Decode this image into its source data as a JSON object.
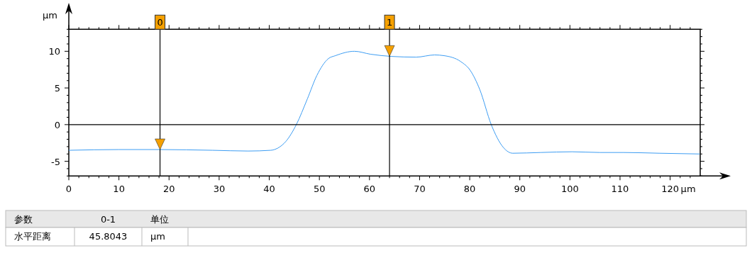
{
  "chart_data": {
    "type": "line",
    "xlabel": "μm",
    "ylabel": "μm",
    "xlim": [
      0,
      126
    ],
    "ylim": [
      -7,
      13
    ],
    "xticks": [
      0,
      {
        "value": 2,
        "label": null
      },
      {
        "value": 4,
        "label": null
      },
      {
        "value": 6,
        "label": null
      },
      {
        "value": 8,
        "label": null
      },
      10,
      {
        "value": 12,
        "label": null
      },
      {
        "value": 14,
        "label": null
      },
      {
        "value": 16,
        "label": null
      },
      {
        "value": 18,
        "label": null
      },
      20,
      {
        "value": 22,
        "label": null
      },
      {
        "value": 24,
        "label": null
      },
      {
        "value": 26,
        "label": null
      },
      {
        "value": 28,
        "label": null
      },
      30,
      {
        "value": 32,
        "label": null
      },
      {
        "value": 34,
        "label": null
      },
      {
        "value": 36,
        "label": null
      },
      {
        "value": 38,
        "label": null
      },
      40,
      {
        "value": 42,
        "label": null
      },
      {
        "value": 44,
        "label": null
      },
      {
        "value": 46,
        "label": null
      },
      {
        "value": 48,
        "label": null
      },
      50,
      {
        "value": 52,
        "label": null
      },
      {
        "value": 54,
        "label": null
      },
      {
        "value": 56,
        "label": null
      },
      {
        "value": 58,
        "label": null
      },
      60,
      {
        "value": 62,
        "label": null
      },
      {
        "value": 64,
        "label": null
      },
      {
        "value": 66,
        "label": null
      },
      {
        "value": 68,
        "label": null
      },
      70,
      {
        "value": 72,
        "label": null
      },
      {
        "value": 74,
        "label": null
      },
      {
        "value": 76,
        "label": null
      },
      {
        "value": 78,
        "label": null
      },
      80,
      {
        "value": 82,
        "label": null
      },
      {
        "value": 84,
        "label": null
      },
      {
        "value": 86,
        "label": null
      },
      {
        "value": 88,
        "label": null
      },
      90,
      {
        "value": 92,
        "label": null
      },
      {
        "value": 94,
        "label": null
      },
      {
        "value": 96,
        "label": null
      },
      {
        "value": 98,
        "label": null
      },
      100,
      {
        "value": 102,
        "label": null
      },
      {
        "value": 104,
        "label": null
      },
      {
        "value": 106,
        "label": null
      },
      {
        "value": 108,
        "label": null
      },
      110,
      {
        "value": 112,
        "label": null
      },
      {
        "value": 114,
        "label": null
      },
      {
        "value": 116,
        "label": null
      },
      {
        "value": 118,
        "label": null
      },
      120,
      {
        "value": 122,
        "label": null
      },
      {
        "value": 124,
        "label": null
      }
    ],
    "yticks": [
      {
        "value": -7,
        "label": null
      },
      {
        "value": -6,
        "label": null
      },
      -5,
      {
        "value": -4,
        "label": null
      },
      {
        "value": -3,
        "label": null
      },
      {
        "value": -2,
        "label": null
      },
      {
        "value": -1,
        "label": null
      },
      0,
      {
        "value": 1,
        "label": null
      },
      {
        "value": 2,
        "label": null
      },
      {
        "value": 3,
        "label": null
      },
      {
        "value": 4,
        "label": null
      },
      5,
      {
        "value": 6,
        "label": null
      },
      {
        "value": 7,
        "label": null
      },
      {
        "value": 8,
        "label": null
      },
      {
        "value": 9,
        "label": null
      },
      10,
      {
        "value": 11,
        "label": null
      },
      {
        "value": 12,
        "label": null
      },
      {
        "value": 13,
        "label": null
      }
    ],
    "series": [
      {
        "color": "#3d9df3",
        "x": [
          0,
          10,
          18.2,
          28.7,
          35.8,
          40.3,
          41.7,
          43.3,
          45.4,
          47.6,
          49.5,
          51.8,
          53.2,
          57.0,
          60.2,
          64.4,
          69.3,
          73.0,
          74.9,
          78.2,
          80.1,
          82.0,
          84.3,
          86.7,
          88.6,
          94.2,
          100.4,
          106.0,
          110.7,
          117.8,
          125.9
        ],
        "values": [
          -3.5,
          -3.4,
          -3.4,
          -3.5,
          -3.6,
          -3.5,
          -3.2,
          -2.3,
          0,
          3.5,
          6.7,
          9.0,
          9.4,
          10.0,
          9.6,
          9.3,
          9.2,
          9.5,
          9.4,
          8.6,
          7.4,
          4.8,
          0,
          -3.1,
          -3.9,
          -3.8,
          -3.7,
          -3.8,
          -3.8,
          -3.9,
          -4.0
        ]
      }
    ],
    "ref_lines": [
      {
        "axis": "y",
        "value": 0,
        "color": "#000000"
      },
      {
        "axis": "x",
        "value": 18.2,
        "color": "#000000"
      },
      {
        "axis": "x",
        "value": 64.0,
        "color": "#000000"
      }
    ],
    "annotations": [
      "参数",
      "0-1",
      "单位",
      "水平距离",
      "45.8043",
      "μm",
      {
        "text": "0",
        "x": 18.2,
        "y": 13
      },
      {
        "text": "1",
        "x": 64.0,
        "y": 13
      }
    ],
    "grid": false,
    "marker": "none",
    "line_style": "solid"
  }
}
